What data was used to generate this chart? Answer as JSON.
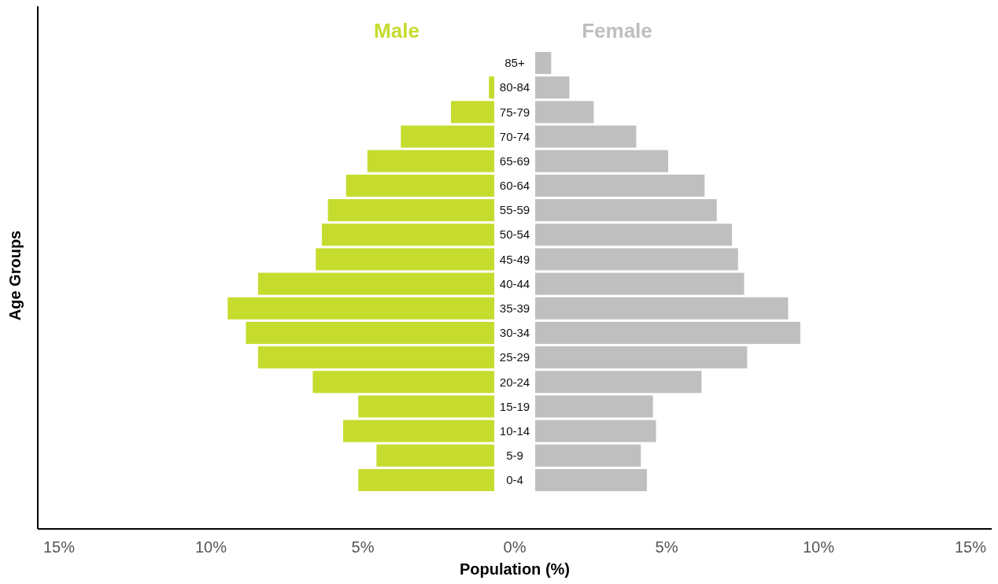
{
  "chart_data": {
    "type": "bar",
    "orientation": "horizontal",
    "xlabel": "Population (%)",
    "ylabel": "Age Groups",
    "categories": [
      "85+",
      "80-84",
      "75-79",
      "70-74",
      "65-69",
      "60-64",
      "55-59",
      "50-54",
      "45-49",
      "40-44",
      "35-39",
      "30-34",
      "25-29",
      "20-24",
      "15-19",
      "10-14",
      "5-9",
      "0-4"
    ],
    "series": [
      {
        "name": "Male",
        "color": "#c5dc2e",
        "values": [
          null,
          -0.85,
          -2.1,
          -3.75,
          -4.85,
          -5.55,
          -6.15,
          -6.35,
          -6.55,
          -8.45,
          -9.45,
          -8.85,
          -8.45,
          -6.65,
          -5.15,
          -5.65,
          -4.55,
          -5.15
        ]
      },
      {
        "name": "Female",
        "color": "#bfbfbf",
        "values": [
          1.2,
          1.8,
          2.6,
          4.0,
          5.05,
          6.25,
          6.65,
          7.15,
          7.35,
          7.55,
          9.0,
          9.4,
          7.65,
          6.15,
          4.55,
          4.65,
          4.15,
          4.35
        ]
      }
    ],
    "xlim": [
      -15.7,
      15.7
    ],
    "xticks": [
      {
        "value": -15,
        "label": "15%"
      },
      {
        "value": -10,
        "label": "10%"
      },
      {
        "value": -5,
        "label": "5%"
      },
      {
        "value": 0,
        "label": "0%"
      },
      {
        "value": 5,
        "label": "5%"
      },
      {
        "value": 10,
        "label": "10%"
      },
      {
        "value": 15,
        "label": "15%"
      }
    ],
    "legend": "top",
    "grid": false,
    "stacked": true
  }
}
